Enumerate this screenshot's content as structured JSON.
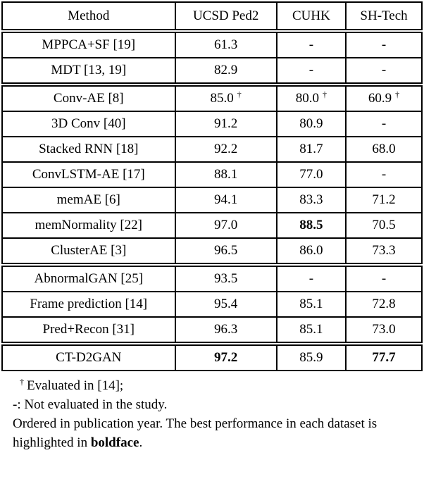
{
  "table": {
    "headers": [
      "Method",
      "UCSD Ped2",
      "CUHK",
      "SH-Tech"
    ],
    "rows": [
      {
        "method": "MPPCA+SF [19]",
        "cells": [
          {
            "text": "61.3"
          },
          {
            "text": "-"
          },
          {
            "text": "-"
          }
        ]
      },
      {
        "method": "MDT [13, 19]",
        "cells": [
          {
            "text": "82.9"
          },
          {
            "text": "-"
          },
          {
            "text": "-"
          }
        ]
      },
      {
        "method": "Conv-AE [8]",
        "group_start": true,
        "cells": [
          {
            "text": "85.0",
            "dagger": true
          },
          {
            "text": "80.0",
            "dagger": true
          },
          {
            "text": "60.9",
            "dagger": true
          }
        ]
      },
      {
        "method": "3D Conv [40]",
        "cells": [
          {
            "text": "91.2"
          },
          {
            "text": "80.9"
          },
          {
            "text": "-"
          }
        ]
      },
      {
        "method": "Stacked RNN [18]",
        "cells": [
          {
            "text": "92.2"
          },
          {
            "text": "81.7"
          },
          {
            "text": "68.0"
          }
        ]
      },
      {
        "method": "ConvLSTM-AE [17]",
        "cells": [
          {
            "text": "88.1"
          },
          {
            "text": "77.0"
          },
          {
            "text": "-"
          }
        ]
      },
      {
        "method": "memAE [6]",
        "cells": [
          {
            "text": "94.1"
          },
          {
            "text": "83.3"
          },
          {
            "text": "71.2"
          }
        ]
      },
      {
        "method": "memNormality [22]",
        "cells": [
          {
            "text": "97.0"
          },
          {
            "text": "88.5",
            "bold": true
          },
          {
            "text": "70.5"
          }
        ]
      },
      {
        "method": "ClusterAE [3]",
        "cells": [
          {
            "text": "96.5"
          },
          {
            "text": "86.0"
          },
          {
            "text": "73.3"
          }
        ]
      },
      {
        "method": "AbnormalGAN [25]",
        "group_start": true,
        "cells": [
          {
            "text": "93.5"
          },
          {
            "text": "-"
          },
          {
            "text": "-"
          }
        ]
      },
      {
        "method": "Frame prediction [14]",
        "cells": [
          {
            "text": "95.4"
          },
          {
            "text": "85.1"
          },
          {
            "text": "72.8"
          }
        ]
      },
      {
        "method": "Pred+Recon [31]",
        "cells": [
          {
            "text": "96.3"
          },
          {
            "text": "85.1"
          },
          {
            "text": "73.0"
          }
        ]
      },
      {
        "method": "CT-D2GAN",
        "group_start": true,
        "cells": [
          {
            "text": "97.2",
            "bold": true
          },
          {
            "text": "85.9"
          },
          {
            "text": "77.7",
            "bold": true
          }
        ]
      }
    ],
    "dagger_symbol": "†"
  },
  "footnotes": {
    "line1_sup": "†",
    "line1_text": "Evaluated in [14];",
    "line2": "-: Not evaluated in the study.",
    "line3_pre": "Ordered in publication year. The best performance in each dataset is highlighted in ",
    "line3_bold": "boldface",
    "line3_post": "."
  }
}
